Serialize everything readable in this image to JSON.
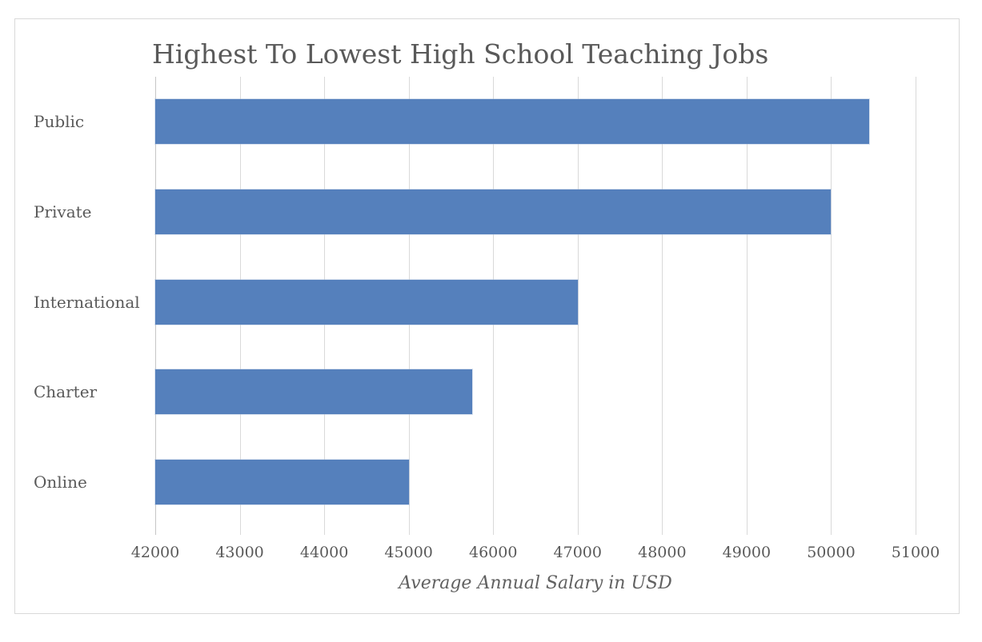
{
  "chart": {
    "title": "Highest To Lowest High School Teaching Jobs",
    "xlabel": "Average Annual Salary in USD"
  },
  "chart_data": {
    "type": "bar",
    "orientation": "horizontal",
    "title": "Highest To Lowest High School Teaching Jobs",
    "xlabel": "Average Annual Salary in USD",
    "ylabel": "",
    "categories": [
      "Public",
      "Private",
      "International",
      "Charter",
      "Online"
    ],
    "values": [
      50450,
      50000,
      47000,
      45750,
      45000
    ],
    "xlim": [
      42000,
      51000
    ],
    "xticks": [
      42000,
      43000,
      44000,
      45000,
      46000,
      47000,
      48000,
      49000,
      50000,
      51000
    ],
    "grid": true,
    "legend": false,
    "bar_color": "#5580BC",
    "text_color": "#595959",
    "gridline_color": "#D9D9D9"
  }
}
